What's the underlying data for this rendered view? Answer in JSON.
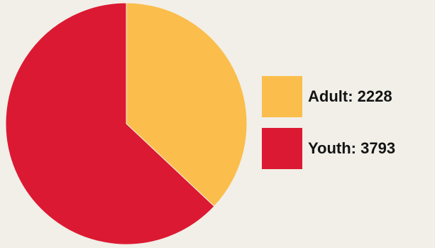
{
  "chart_data": {
    "type": "pie",
    "title": "",
    "slices": [
      {
        "label": "Adult",
        "value": 2228,
        "color": "#fbbe4c",
        "legend_text": "Adult: 2228"
      },
      {
        "label": "Youth",
        "value": 3793,
        "color": "#dc1932",
        "legend_text": "Youth: 3793"
      }
    ],
    "start": "12 o'clock",
    "direction": "clockwise",
    "legend_position": "right"
  }
}
